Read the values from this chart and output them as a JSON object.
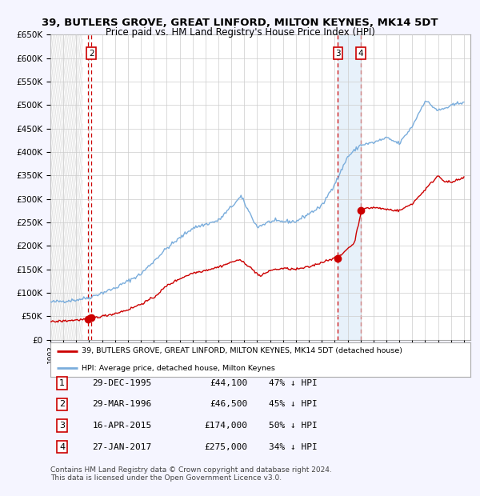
{
  "title_line1": "39, BUTLERS GROVE, GREAT LINFORD, MILTON KEYNES, MK14 5DT",
  "title_line2": "Price paid vs. HM Land Registry's House Price Index (HPI)",
  "transactions": [
    {
      "num": 1,
      "date": "1995-12-29",
      "price": 44100,
      "label": "29-DEC-1995",
      "pct": "47%"
    },
    {
      "num": 2,
      "date": "1996-03-29",
      "price": 46500,
      "label": "29-MAR-1996",
      "pct": "45%"
    },
    {
      "num": 3,
      "date": "2015-04-16",
      "price": 174000,
      "label": "16-APR-2015",
      "pct": "50%"
    },
    {
      "num": 4,
      "date": "2017-01-27",
      "price": 275000,
      "label": "27-JAN-2017",
      "pct": "34%"
    }
  ],
  "hpi_color": "#7aaddc",
  "price_color": "#cc0000",
  "background_color": "#f5f5ff",
  "plot_bg_color": "#ffffff",
  "grid_color": "#cccccc",
  "vline_color": "#cc0000",
  "shade_color": "#d8e8f8",
  "hatch_color": "#cccccc",
  "ylim": [
    0,
    650000
  ],
  "yticks": [
    0,
    50000,
    100000,
    150000,
    200000,
    250000,
    300000,
    350000,
    400000,
    450000,
    500000,
    550000,
    600000,
    650000
  ],
  "legend_label_red": "39, BUTLERS GROVE, GREAT LINFORD, MILTON KEYNES, MK14 5DT (detached house)",
  "legend_label_blue": "HPI: Average price, detached house, Milton Keynes",
  "footnote_line1": "Contains HM Land Registry data © Crown copyright and database right 2024.",
  "footnote_line2": "This data is licensed under the Open Government Licence v3.0.",
  "hpi_anchors": {
    "1993.0": 80000,
    "1995.0": 85000,
    "1996.0": 90000,
    "1998.0": 110000,
    "2000.0": 140000,
    "2002.0": 195000,
    "2004.0": 238000,
    "2006.0": 254000,
    "2007.75": 305000,
    "2009.0": 240000,
    "2010.0": 252000,
    "2012.0": 252000,
    "2014.0": 285000,
    "2015.25": 345000,
    "2016.0": 390000,
    "2017.0": 415000,
    "2018.0": 420000,
    "2019.0": 430000,
    "2020.0": 418000,
    "2021.0": 455000,
    "2022.0": 510000,
    "2023.0": 488000,
    "2024.0": 498000,
    "2025.0": 508000
  },
  "price_anchors": {
    "1993.0": 38000,
    "1995.98": 44100,
    "1996.24": 46500,
    "1997.0": 50000,
    "1998.0": 56000,
    "1999.0": 64000,
    "2000.0": 76000,
    "2001.0": 90000,
    "2002.0": 115000,
    "2003.0": 130000,
    "2004.0": 142000,
    "2005.0": 148000,
    "2006.0": 155000,
    "2007.5": 170000,
    "2008.0": 165000,
    "2009.25": 135000,
    "2010.0": 148000,
    "2011.0": 152000,
    "2012.0": 150000,
    "2013.0": 155000,
    "2014.0": 165000,
    "2015.0": 175000,
    "2015.29": 174000,
    "2015.5": 180000,
    "2016.0": 195000,
    "2016.5": 205000,
    "2017.07": 275000,
    "2017.5": 280000,
    "2018.0": 282000,
    "2019.0": 278000,
    "2020.0": 275000,
    "2021.0": 290000,
    "2022.0": 320000,
    "2023.0": 350000,
    "2023.5": 338000,
    "2024.0": 335000,
    "2025.0": 345000
  }
}
